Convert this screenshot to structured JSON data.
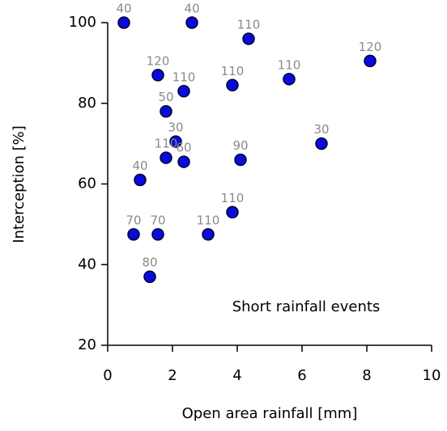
{
  "chart_data": {
    "type": "scatter",
    "x_label": "Open area rainfall [mm]",
    "y_label": "Interception [%]",
    "annotation": "Short rainfall events",
    "xlim": [
      0,
      10
    ],
    "xticks": [
      0,
      2,
      4,
      6,
      8,
      10
    ],
    "ylim": [
      20,
      100
    ],
    "yticks": [
      20,
      40,
      60,
      80,
      100
    ],
    "color": "#0a0adc",
    "x": [
      0.5,
      2.6,
      4.35,
      8.1,
      1.55,
      2.35,
      3.85,
      5.6,
      1.8,
      2.1,
      6.6,
      1.8,
      2.35,
      4.1,
      1.0,
      0.8,
      1.55,
      3.1,
      3.85,
      1.3
    ],
    "y": [
      100,
      100,
      96,
      90.5,
      87,
      83,
      84.5,
      86,
      78,
      70.5,
      70,
      66.5,
      65.5,
      66,
      61,
      47.5,
      47.5,
      47.5,
      53,
      37
    ],
    "point_labels": [
      40,
      40,
      110,
      120,
      120,
      110,
      110,
      110,
      50,
      30,
      30,
      110,
      60,
      90,
      40,
      70,
      70,
      110,
      110,
      80
    ]
  }
}
